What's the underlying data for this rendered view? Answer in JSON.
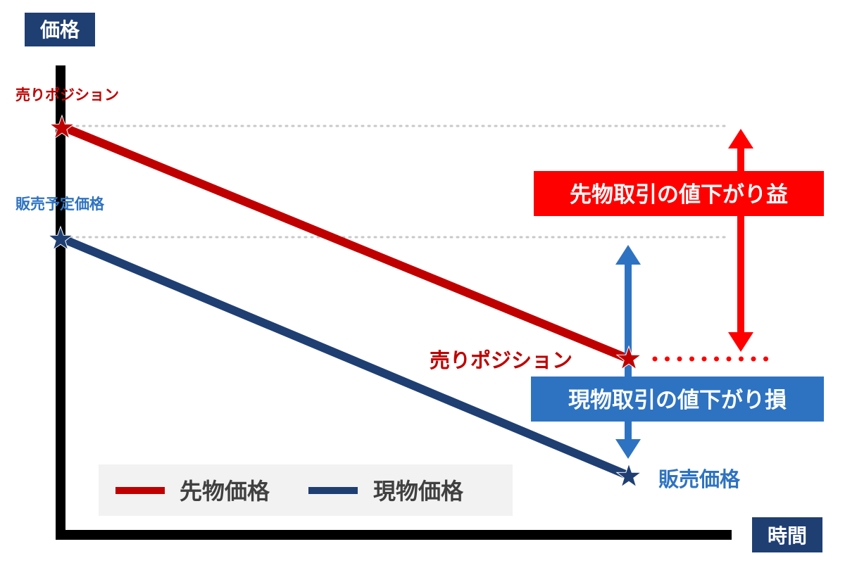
{
  "axes": {
    "y_label": "価格",
    "x_label": "時間"
  },
  "points": {
    "futures_start_label": "売りポジション",
    "spot_start_label": "販売予定価格",
    "futures_end_label": "売りポジション",
    "spot_end_label": "販売価格"
  },
  "annotations": {
    "futures_gain": "先物取引の値下がり益",
    "spot_loss": "現物取引の値下がり損"
  },
  "legend": {
    "futures": "先物価格",
    "spot": "現物価格"
  },
  "colors": {
    "futures": "#c00000",
    "spot": "#1f3f73",
    "spot_arrow": "#2e73c2",
    "gain": "#ff0000",
    "axis_label_bg": "#1f3f73",
    "legend_bg": "#f2f2f2"
  }
}
